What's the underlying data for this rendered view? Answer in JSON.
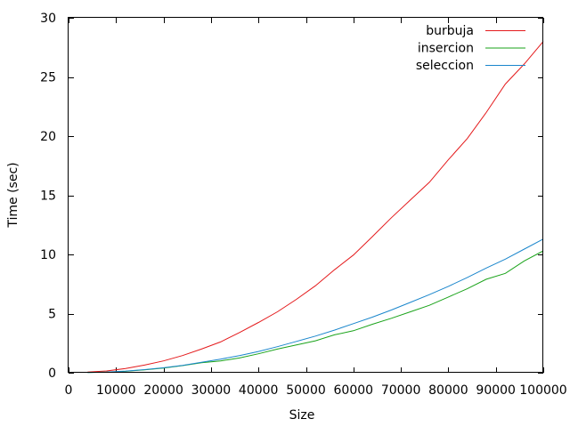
{
  "chart_data": {
    "type": "line",
    "xlabel": "Size",
    "ylabel": "Time (sec)",
    "xlim": [
      0,
      100000
    ],
    "ylim": [
      0,
      30
    ],
    "xticks": [
      0,
      10000,
      20000,
      30000,
      40000,
      50000,
      60000,
      70000,
      80000,
      90000,
      100000
    ],
    "yticks": [
      0,
      5,
      10,
      15,
      20,
      25,
      30
    ],
    "grid": false,
    "legend_position": "top-right",
    "series": [
      {
        "name": "burbuja",
        "color": "#e41a1c",
        "x": [
          4000,
          8000,
          12000,
          16000,
          20000,
          24000,
          28000,
          32000,
          36000,
          40000,
          44000,
          48000,
          52000,
          56000,
          60000,
          64000,
          68000,
          72000,
          76000,
          80000,
          84000,
          88000,
          92000,
          96000,
          100000
        ],
        "y": [
          0.05,
          0.15,
          0.35,
          0.65,
          1.0,
          1.45,
          2.0,
          2.6,
          3.4,
          4.25,
          5.15,
          6.2,
          7.35,
          8.7,
          9.95,
          11.5,
          13.1,
          14.6,
          16.1,
          18.0,
          19.8,
          22.0,
          24.4,
          26.1,
          28.0
        ]
      },
      {
        "name": "insercion",
        "color": "#1aa31a",
        "x": [
          4000,
          8000,
          12000,
          16000,
          20000,
          24000,
          28000,
          32000,
          36000,
          40000,
          44000,
          48000,
          52000,
          56000,
          60000,
          64000,
          68000,
          72000,
          76000,
          80000,
          84000,
          88000,
          92000,
          96000,
          100000
        ],
        "y": [
          0.02,
          0.05,
          0.12,
          0.25,
          0.4,
          0.6,
          0.85,
          1.0,
          1.25,
          1.6,
          2.0,
          2.35,
          2.7,
          3.2,
          3.55,
          4.1,
          4.6,
          5.15,
          5.7,
          6.4,
          7.1,
          7.9,
          8.4,
          9.45,
          10.3
        ]
      },
      {
        "name": "seleccion",
        "color": "#1a86cc",
        "x": [
          4000,
          8000,
          12000,
          16000,
          20000,
          24000,
          28000,
          32000,
          36000,
          40000,
          44000,
          48000,
          52000,
          56000,
          60000,
          64000,
          68000,
          72000,
          76000,
          80000,
          84000,
          88000,
          92000,
          96000,
          100000
        ],
        "y": [
          0.02,
          0.06,
          0.14,
          0.26,
          0.42,
          0.62,
          0.88,
          1.15,
          1.45,
          1.8,
          2.2,
          2.65,
          3.1,
          3.6,
          4.15,
          4.7,
          5.3,
          5.95,
          6.6,
          7.3,
          8.05,
          8.85,
          9.6,
          10.45,
          11.3
        ]
      }
    ]
  }
}
